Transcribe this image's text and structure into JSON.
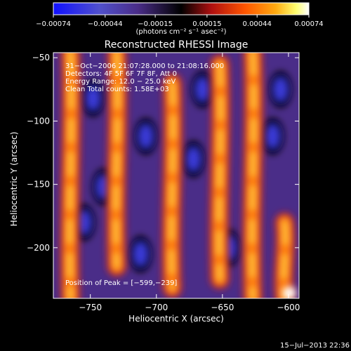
{
  "chart_data": {
    "type": "heatmap",
    "title": "Reconstructed RHESSI Image",
    "xlabel": "Heliocentric X (arcsec)",
    "ylabel": "Heliocentric Y (arcsec)",
    "xlim": [
      -778,
      -592
    ],
    "ylim": [
      -240,
      -46
    ],
    "xticks": [
      -750,
      -700,
      -650,
      -600
    ],
    "xtick_labels": [
      "−750",
      "−700",
      "−650",
      "−600"
    ],
    "yticks": [
      -50,
      -100,
      -150,
      -200
    ],
    "ytick_labels": [
      "−50",
      "−100",
      "−150",
      "−200"
    ],
    "colorbar": {
      "ticks": [
        -0.00074,
        -0.00044,
        -0.00015,
        0.00015,
        0.00044,
        0.00074
      ],
      "tick_labels": [
        "−0.00074",
        "−0.00044",
        "−0.00015",
        "0.00015",
        "0.00044",
        "0.00074"
      ],
      "units": "(photons cm⁻² s⁻¹ asec⁻²)",
      "min": -0.00074,
      "max": 0.00074
    },
    "annotations": [
      "31−Oct−2006 21:07:28.000 to 21:08:16.000",
      "Detectors: 4F 5F 6F 7F 8F, Att 0",
      "Energy Range: 12.0 − 25.0 keV",
      "Clean    Total counts: 1.58E+03"
    ],
    "peak_label": "Position of Peak = [−599,−239]",
    "peak_position": [
      -599,
      -239
    ],
    "bright_ridges": [
      {
        "x": -765,
        "y_from": -240,
        "y_to": -46
      },
      {
        "x": -730,
        "y_from": -215,
        "y_to": -46
      },
      {
        "x": -688,
        "y_from": -232,
        "y_to": -70
      },
      {
        "x": -652,
        "y_from": -225,
        "y_to": -55
      },
      {
        "x": -627,
        "y_from": -240,
        "y_to": -46
      },
      {
        "x": -603,
        "y_from": -240,
        "y_to": -180
      }
    ],
    "dark_spots": [
      {
        "x": -748,
        "y": -82
      },
      {
        "x": -755,
        "y": -180
      },
      {
        "x": -708,
        "y": -112
      },
      {
        "x": -712,
        "y": -205
      },
      {
        "x": -665,
        "y": -75
      },
      {
        "x": -672,
        "y": -130
      },
      {
        "x": -645,
        "y": -200
      },
      {
        "x": -612,
        "y": -112
      },
      {
        "x": -606,
        "y": -75
      },
      {
        "x": -740,
        "y": -152
      }
    ]
  },
  "footer": {
    "date_stamp": "15−Jul−2013 22:36"
  },
  "colors": {
    "background": "#000000",
    "text": "#ffffff",
    "colormap": [
      "#1010ff",
      "#5050cc",
      "#4a2d88",
      "#000000",
      "#b01010",
      "#ff5500",
      "#ffaa10",
      "#ffff70",
      "#ffffff"
    ]
  }
}
